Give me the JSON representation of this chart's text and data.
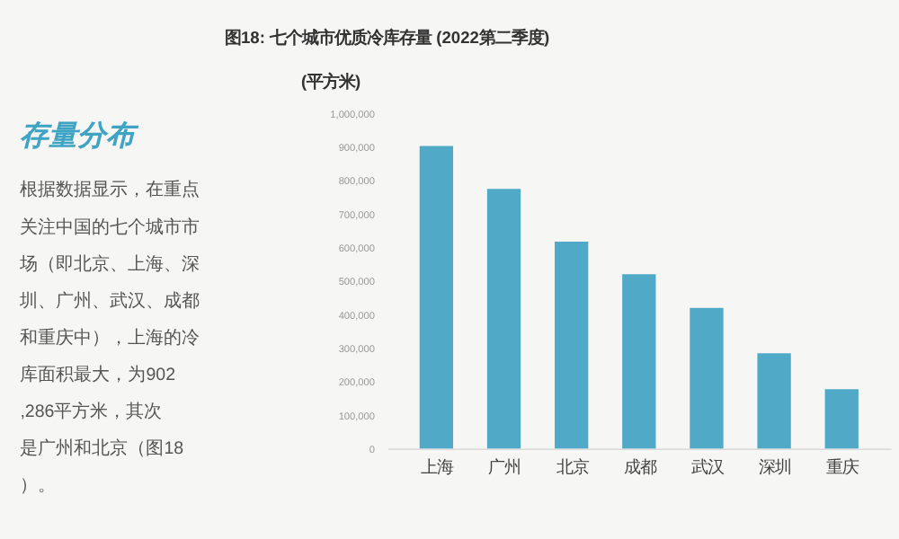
{
  "chart_data": {
    "type": "bar",
    "title": "图18: 七个城市优质冷库存量 (2022第二季度)",
    "ylabel": "(平方米)",
    "annotations": [
      "存量分布",
      "根据数据显示，在重点关注中国的七个城市市场（即北京、上海、深圳、广州、武汉、成都和重庆中），上海的冷库面积最大，为902,286平方米，其次是广州和北京（图18）。"
    ],
    "categories": [
      "上海",
      "广州",
      "北京",
      "成都",
      "武汉",
      "深圳",
      "重庆"
    ],
    "values": [
      902286,
      774000,
      617000,
      520000,
      419000,
      284000,
      177000
    ],
    "color": "#4fa9c7",
    "ylim": [
      0,
      1000000
    ],
    "yticks": [
      0,
      {
        "value": 100000,
        "label": "100,000"
      },
      {
        "value": 200000,
        "label": "200,000"
      },
      {
        "value": 300000,
        "label": "300,000"
      },
      {
        "value": 400000,
        "label": "400,000"
      },
      {
        "value": 500000,
        "label": "500,000"
      },
      {
        "value": 600000,
        "label": "600,000"
      },
      {
        "value": 700000,
        "label": "700,000"
      },
      {
        "value": 800000,
        "label": "800,000"
      },
      {
        "value": 900000,
        "label": "900,000"
      },
      {
        "value": 1000000,
        "label": "1,000,000"
      }
    ],
    "grid": false
  }
}
